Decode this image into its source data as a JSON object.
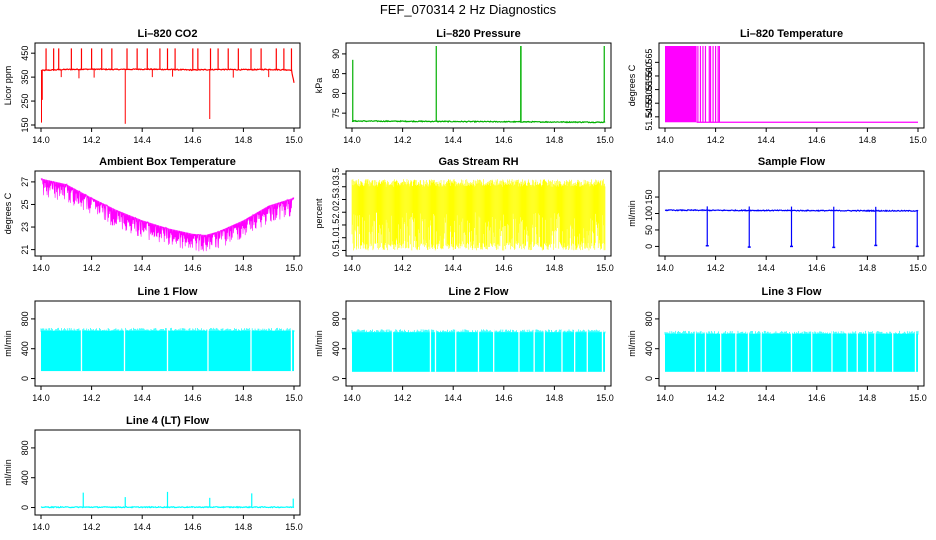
{
  "page": {
    "title": "FEF_070314  2 Hz Diagnostics"
  },
  "chart_data": [
    {
      "type": "line",
      "title": "Li–820 CO2",
      "xlabel": "",
      "ylabel": "Licor ppm",
      "xlim": [
        14.0,
        15.0
      ],
      "ylim": [
        150,
        480
      ],
      "xticks": [
        "14.0",
        "14.2",
        "14.4",
        "14.6",
        "14.8",
        "15.0"
      ],
      "yticks": [
        "150",
        "250",
        "350",
        "450"
      ],
      "color": "#ff0000",
      "series": [
        {
          "baseline": [
            [
              14.0,
              378
            ],
            [
              14.1,
              382
            ],
            [
              14.2,
              383
            ],
            [
              14.3,
              382
            ],
            [
              14.4,
              383
            ],
            [
              14.5,
              382
            ],
            [
              14.6,
              380
            ],
            [
              14.7,
              382
            ],
            [
              14.8,
              381
            ],
            [
              14.9,
              382
            ],
            [
              14.99,
              380
            ],
            [
              15.0,
              325
            ]
          ],
          "spikes_up": [
            14.02,
            14.05,
            14.07,
            14.12,
            14.16,
            14.2,
            14.24,
            14.28,
            14.34,
            14.38,
            14.42,
            14.47,
            14.5,
            14.53,
            14.6,
            14.62,
            14.67,
            14.7,
            14.74,
            14.78,
            14.83,
            14.87,
            14.93,
            14.96,
            14.99
          ],
          "spike_up_value": 470,
          "spikes_down": [
            [
              14.002,
              160
            ],
            [
              14.005,
              255
            ],
            [
              14.333,
              155
            ],
            [
              14.667,
              175
            ],
            [
              14.08,
              350
            ],
            [
              14.15,
              345
            ],
            [
              14.21,
              348
            ],
            [
              14.44,
              350
            ],
            [
              14.52,
              352
            ],
            [
              14.76,
              348
            ],
            [
              14.9,
              350
            ]
          ]
        }
      ]
    },
    {
      "type": "line",
      "title": "Li–820 Pressure",
      "xlabel": "",
      "ylabel": "kPa",
      "xlim": [
        14.0,
        15.0
      ],
      "ylim": [
        72,
        92
      ],
      "xticks": [
        "14.0",
        "14.2",
        "14.4",
        "14.6",
        "14.8",
        "15.0"
      ],
      "yticks": [
        "75",
        "80",
        "85",
        "90"
      ],
      "color": "#00b000",
      "series": [
        {
          "baseline": [
            [
              14.0,
              73.0
            ],
            [
              15.0,
              72.7
            ]
          ],
          "spikes_up": [
            [
              14.003,
              88.5
            ],
            [
              14.333,
              92
            ],
            [
              14.667,
              92
            ],
            [
              14.668,
              92
            ],
            [
              14.997,
              92
            ]
          ]
        }
      ]
    },
    {
      "type": "line",
      "title": "Li–820 Temperature",
      "xlabel": "",
      "ylabel": "degrees C",
      "xlim": [
        14.0,
        15.0
      ],
      "ylim": [
        51.542,
        51.571
      ],
      "xticks": [
        "14.0",
        "14.2",
        "14.4",
        "14.6",
        "14.8",
        "15.0"
      ],
      "yticks": [
        "51.545",
        "51.550",
        "51.555",
        "51.560",
        "51.565"
      ],
      "color": "#ff00ff",
      "series": [
        {
          "filled_block": [
            14.0,
            14.125,
            51.543,
            51.571
          ],
          "toggle_lines": [
            14.13,
            14.14,
            14.15,
            14.16,
            14.175,
            14.18,
            14.19,
            14.2,
            14.21,
            14.215
          ],
          "final_value": 51.543
        }
      ]
    },
    {
      "type": "line",
      "title": "Ambient Box Temperature",
      "xlabel": "",
      "ylabel": "degrees C",
      "xlim": [
        14.0,
        15.0
      ],
      "ylim": [
        20.7,
        27.7
      ],
      "xticks": [
        "14.0",
        "14.2",
        "14.4",
        "14.6",
        "14.8",
        "15.0"
      ],
      "yticks": [
        "21",
        "23",
        "25",
        "27"
      ],
      "color": "#ff00ff",
      "series": [
        {
          "upper": [
            [
              14.0,
              27.3
            ],
            [
              14.1,
              26.8
            ],
            [
              14.2,
              25.6
            ],
            [
              14.3,
              24.5
            ],
            [
              14.4,
              23.6
            ],
            [
              14.5,
              22.9
            ],
            [
              14.6,
              22.4
            ],
            [
              14.65,
              22.3
            ],
            [
              14.7,
              22.6
            ],
            [
              14.8,
              23.6
            ],
            [
              14.9,
              24.9
            ],
            [
              15.0,
              25.6
            ]
          ],
          "noise_depth": 1.6
        }
      ]
    },
    {
      "type": "line",
      "title": "Gas Stream RH",
      "xlabel": "",
      "ylabel": "percent",
      "xlim": [
        14.0,
        15.0
      ],
      "ylim": [
        0.4,
        3.5
      ],
      "xticks": [
        "14.0",
        "14.2",
        "14.4",
        "14.6",
        "14.8",
        "15.0"
      ],
      "yticks": [
        "0.5",
        "1.0",
        "1.5",
        "2.0",
        "2.5",
        "3.0",
        "3.5"
      ],
      "color": "#ffff00",
      "series": [
        {
          "band": [
            0.5,
            3.3
          ]
        }
      ]
    },
    {
      "type": "line",
      "title": "Sample Flow",
      "xlabel": "",
      "ylabel": "ml/min",
      "xlim": [
        14.0,
        15.0
      ],
      "ylim": [
        -20,
        220
      ],
      "xticks": [
        "14.0",
        "14.2",
        "14.4",
        "14.6",
        "14.8",
        "15.0"
      ],
      "yticks": [
        "0",
        "50",
        "100",
        "150"
      ],
      "color": "#0000ff",
      "series": [
        {
          "baseline": [
            [
              14.0,
              110
            ],
            [
              15.0,
              108
            ]
          ],
          "dips": [
            [
              14.167,
              2
            ],
            [
              14.333,
              -2
            ],
            [
              14.5,
              0
            ],
            [
              14.667,
              -3
            ],
            [
              14.833,
              3
            ],
            [
              14.997,
              0
            ]
          ],
          "spikes_up": [
            14.167,
            14.333,
            14.5,
            14.667,
            14.833
          ]
        }
      ]
    },
    {
      "type": "area",
      "title": "Line 1 Flow",
      "xlabel": "",
      "ylabel": "ml/min",
      "xlim": [
        14.0,
        15.0
      ],
      "ylim": [
        -60,
        1000
      ],
      "xticks": [
        "14.0",
        "14.2",
        "14.4",
        "14.6",
        "14.8",
        "15.0"
      ],
      "yticks": [
        "0",
        "400",
        "800"
      ],
      "color": "#00ffff",
      "series": [
        {
          "band": [
            100,
            640
          ],
          "gaps": [
            14.16,
            14.33,
            14.5,
            14.66,
            14.83,
            14.99
          ]
        }
      ]
    },
    {
      "type": "area",
      "title": "Line 2 Flow",
      "xlabel": "",
      "ylabel": "ml/min",
      "xlim": [
        14.0,
        15.0
      ],
      "ylim": [
        -60,
        1000
      ],
      "xticks": [
        "14.0",
        "14.2",
        "14.4",
        "14.6",
        "14.8",
        "15.0"
      ],
      "yticks": [
        "0",
        "400",
        "800"
      ],
      "color": "#00ffff",
      "series": [
        {
          "band": [
            90,
            620
          ],
          "gaps": [
            14.16,
            14.31,
            14.33,
            14.41,
            14.5,
            14.56,
            14.66,
            14.72,
            14.76,
            14.83,
            14.88,
            14.93,
            14.99
          ]
        }
      ]
    },
    {
      "type": "area",
      "title": "Line 3 Flow",
      "xlabel": "",
      "ylabel": "ml/min",
      "xlim": [
        14.0,
        15.0
      ],
      "ylim": [
        -60,
        1000
      ],
      "xticks": [
        "14.0",
        "14.2",
        "14.4",
        "14.6",
        "14.8",
        "15.0"
      ],
      "yticks": [
        "0",
        "400",
        "800"
      ],
      "color": "#00ffff",
      "series": [
        {
          "band": [
            90,
            600
          ],
          "gaps": [
            14.12,
            14.16,
            14.22,
            14.28,
            14.33,
            14.38,
            14.5,
            14.58,
            14.66,
            14.72,
            14.76,
            14.8,
            14.83,
            14.9,
            14.99
          ]
        }
      ]
    },
    {
      "type": "line",
      "title": "Line 4 (LT) Flow",
      "xlabel": "",
      "ylabel": "ml/min",
      "xlim": [
        14.0,
        15.0
      ],
      "ylim": [
        -60,
        1000
      ],
      "xticks": [
        "14.0",
        "14.2",
        "14.4",
        "14.6",
        "14.8",
        "15.0"
      ],
      "yticks": [
        "0",
        "400",
        "800"
      ],
      "color": "#00ffff",
      "series": [
        {
          "baseline": [
            [
              14.0,
              5
            ],
            [
              15.0,
              5
            ]
          ],
          "spikes_up": [
            [
              14.167,
              200
            ],
            [
              14.333,
              140
            ],
            [
              14.5,
              210
            ],
            [
              14.667,
              130
            ],
            [
              14.833,
              190
            ],
            [
              14.997,
              120
            ]
          ]
        }
      ]
    }
  ]
}
